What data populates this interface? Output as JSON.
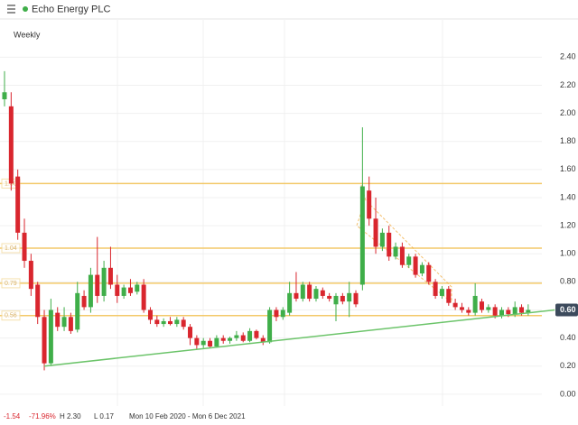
{
  "header": {
    "title": "Echo Energy PLC",
    "interval": "Weekly"
  },
  "chart_data": {
    "type": "candlestick",
    "up_color": "#3fae49",
    "down_color": "#d9262e",
    "ylim": [
      -0.02,
      2.55
    ],
    "yticks": [
      {
        "value": 0,
        "label": "0.00"
      },
      {
        "value": 0.2,
        "label": "0.20"
      },
      {
        "value": 0.4,
        "label": "0.40"
      },
      {
        "value": 0.6,
        "label": "0.60"
      },
      {
        "value": 0.8,
        "label": "0.80"
      },
      {
        "value": 1,
        "label": "1.00"
      },
      {
        "value": 1.2,
        "label": "1.20"
      },
      {
        "value": 1.4,
        "label": "1.40"
      },
      {
        "value": 1.6,
        "label": "1.60"
      },
      {
        "value": 1.8,
        "label": "1.80"
      },
      {
        "value": 2,
        "label": "2.00"
      },
      {
        "value": 2.2,
        "label": "2.20"
      },
      {
        "value": 2.4,
        "label": "2.40"
      }
    ],
    "grid": true,
    "open": [
      2.1,
      2.05,
      1.55,
      1.15,
      0.95,
      0.78,
      0.55,
      0.22,
      0.58,
      0.48,
      0.55,
      0.46,
      0.7,
      0.62,
      0.85,
      0.7,
      0.9,
      0.78,
      0.7,
      0.76,
      0.73,
      0.78,
      0.6,
      0.53,
      0.5,
      0.52,
      0.5,
      0.53,
      0.48,
      0.4,
      0.35,
      0.38,
      0.34,
      0.4,
      0.38,
      0.4,
      0.42,
      0.38,
      0.45,
      0.4,
      0.37,
      0.6,
      0.55,
      0.58,
      0.72,
      0.68,
      0.78,
      0.68,
      0.74,
      0.7,
      0.64,
      0.7,
      0.66,
      0.72,
      0.78,
      1.45,
      1.25,
      1.05,
      1.15,
      0.98,
      1.05,
      0.92,
      0.98,
      0.86,
      0.92,
      0.8,
      0.7,
      0.75,
      0.65,
      0.62,
      0.6,
      0.58,
      0.66,
      0.6,
      0.62,
      0.56,
      0.6,
      0.57,
      0.62,
      0.58
    ],
    "high": [
      2.3,
      2.15,
      1.6,
      1.25,
      1.0,
      0.8,
      0.6,
      0.68,
      0.62,
      0.62,
      0.58,
      0.8,
      0.74,
      0.9,
      1.12,
      0.95,
      1.05,
      0.85,
      0.78,
      0.82,
      0.8,
      0.82,
      0.62,
      0.56,
      0.54,
      0.55,
      0.55,
      0.55,
      0.5,
      0.42,
      0.4,
      0.4,
      0.42,
      0.42,
      0.41,
      0.45,
      0.44,
      0.47,
      0.46,
      0.42,
      0.62,
      0.62,
      0.62,
      0.8,
      0.87,
      0.8,
      0.8,
      0.77,
      0.76,
      0.72,
      0.72,
      0.72,
      0.8,
      0.74,
      1.9,
      1.55,
      1.4,
      1.18,
      1.2,
      1.08,
      1.08,
      1.0,
      1.0,
      0.94,
      0.94,
      0.82,
      0.77,
      0.77,
      0.68,
      0.65,
      0.62,
      0.79,
      0.68,
      0.64,
      0.64,
      0.62,
      0.62,
      0.66,
      0.64,
      0.64
    ],
    "low": [
      2.05,
      1.45,
      1.1,
      0.9,
      0.7,
      0.5,
      0.17,
      0.2,
      0.45,
      0.45,
      0.43,
      0.44,
      0.6,
      0.58,
      0.65,
      0.66,
      0.75,
      0.65,
      0.68,
      0.7,
      0.71,
      0.58,
      0.5,
      0.48,
      0.48,
      0.49,
      0.48,
      0.46,
      0.35,
      0.32,
      0.33,
      0.33,
      0.33,
      0.36,
      0.36,
      0.38,
      0.37,
      0.37,
      0.39,
      0.35,
      0.36,
      0.52,
      0.53,
      0.56,
      0.66,
      0.66,
      0.66,
      0.66,
      0.68,
      0.66,
      0.52,
      0.64,
      0.55,
      0.62,
      0.74,
      1.2,
      1.0,
      1.02,
      0.95,
      0.96,
      0.9,
      0.9,
      0.83,
      0.84,
      0.78,
      0.68,
      0.68,
      0.63,
      0.6,
      0.58,
      0.56,
      0.56,
      0.58,
      0.58,
      0.54,
      0.54,
      0.55,
      0.55,
      0.56,
      0.56
    ],
    "close": [
      2.15,
      1.5,
      1.15,
      0.95,
      0.75,
      0.55,
      0.22,
      0.6,
      0.48,
      0.55,
      0.45,
      0.72,
      0.62,
      0.85,
      0.7,
      0.9,
      0.78,
      0.7,
      0.76,
      0.72,
      0.78,
      0.6,
      0.53,
      0.5,
      0.52,
      0.5,
      0.53,
      0.48,
      0.4,
      0.35,
      0.38,
      0.34,
      0.4,
      0.38,
      0.4,
      0.42,
      0.38,
      0.45,
      0.4,
      0.37,
      0.6,
      0.55,
      0.6,
      0.72,
      0.68,
      0.78,
      0.68,
      0.75,
      0.7,
      0.68,
      0.7,
      0.66,
      0.72,
      0.64,
      1.48,
      1.25,
      1.05,
      1.15,
      0.98,
      1.05,
      0.92,
      0.98,
      0.85,
      0.92,
      0.8,
      0.7,
      0.75,
      0.65,
      0.62,
      0.6,
      0.58,
      0.7,
      0.6,
      0.62,
      0.56,
      0.6,
      0.57,
      0.62,
      0.58,
      0.6
    ],
    "levels": [
      {
        "value": 1.5,
        "label": "1.50"
      },
      {
        "value": 1.04,
        "label": "1.04"
      },
      {
        "value": 0.79,
        "label": "0.79"
      },
      {
        "value": 0.56,
        "label": "0.56"
      }
    ],
    "trendline": {
      "x": [
        6,
        83
      ],
      "y": [
        0.2,
        0.6
      ]
    },
    "last": {
      "value": 0.6,
      "label": "0.60"
    },
    "change": "-1.54",
    "change_pct": "-71.96%",
    "high_text": "H 2.30",
    "low_text": "L 0.17",
    "range_text": "Mon 10 Feb 2020 - Mon 6 Dec 2021"
  }
}
